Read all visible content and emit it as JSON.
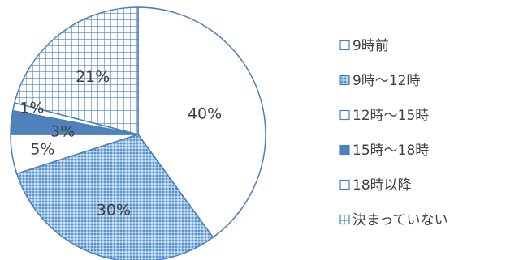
{
  "chart_data": {
    "type": "pie",
    "title": "",
    "categories": [
      "9時前",
      "9時～12時",
      "12時～15時",
      "15時～18時",
      "18時以降",
      "決まっていない"
    ],
    "values": [
      40,
      30,
      5,
      3,
      1,
      21
    ],
    "value_labels": [
      "40%",
      "30%",
      "5%",
      "3%",
      "1%",
      "21%"
    ],
    "start_angle_deg": 0,
    "direction": "clockwise",
    "legend_position": "right",
    "colors": {
      "outline": "#4a7ebb",
      "fill_white": "#ffffff",
      "fill_solid": "#4f81bd",
      "pattern_light": "#9dc3e6",
      "text": "#404040"
    },
    "fills": [
      "white",
      "dense-dots",
      "white",
      "solid",
      "white",
      "grid"
    ]
  }
}
